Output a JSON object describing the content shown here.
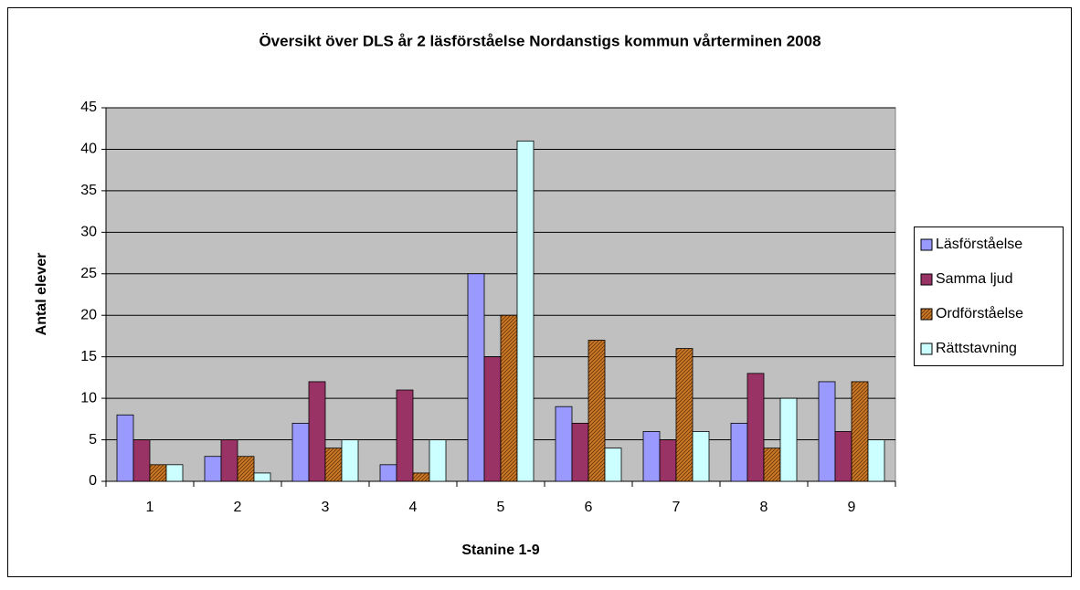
{
  "chart_data": {
    "type": "bar",
    "title": "Översikt över DLS  år 2  läsförståelse Nordanstigs kommun vårterminen 2008",
    "x_label": "Stanine 1-9",
    "y_label": "Antal elever",
    "categories": [
      "1",
      "2",
      "3",
      "4",
      "5",
      "6",
      "7",
      "8",
      "9"
    ],
    "series": [
      {
        "name": "Läsförståelse",
        "color": "#9999ff",
        "values": [
          8,
          3,
          7,
          2,
          25,
          9,
          6,
          7,
          12
        ]
      },
      {
        "name": "Samma ljud",
        "color": "#993366",
        "values": [
          5,
          5,
          12,
          11,
          15,
          7,
          5,
          13,
          6
        ]
      },
      {
        "name": "Ordförståelse",
        "color": "#cc7a29",
        "values": [
          2,
          3,
          4,
          1,
          20,
          17,
          16,
          4,
          12
        ]
      },
      {
        "name": "Rättstavning",
        "color": "#ccffff",
        "values": [
          2,
          1,
          5,
          5,
          41,
          4,
          6,
          10,
          5
        ]
      }
    ],
    "ylim": [
      0,
      45
    ],
    "yticks": [
      0,
      5,
      10,
      15,
      20,
      25,
      30,
      35,
      40,
      45
    ],
    "grid": true,
    "legend": "right"
  }
}
